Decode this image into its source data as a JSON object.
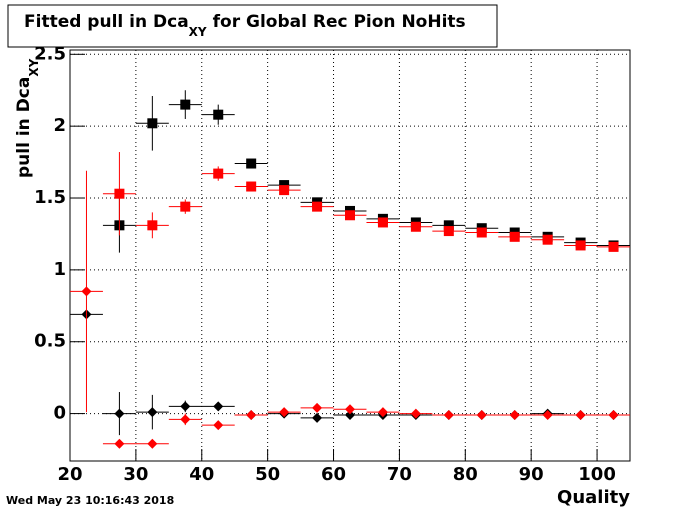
{
  "chart_data": {
    "type": "errorbar",
    "title": {
      "main": "Fitted pull in Dca",
      "subscript": "XY",
      "rest": "for Global Rec Pion NoHits"
    },
    "y_label": {
      "main": "pull in Dca",
      "subscript": "XY"
    },
    "x_label": "Quality",
    "timestamp": "Wed May 23 10:16:43 2018",
    "x": [
      22.5,
      27.5,
      32.5,
      37.5,
      42.5,
      47.5,
      52.5,
      57.5,
      62.5,
      67.5,
      72.5,
      77.5,
      82.5,
      87.5,
      92.5,
      97.5,
      102.5
    ],
    "xlim": [
      20,
      105
    ],
    "xticks": [
      20,
      30,
      40,
      50,
      60,
      70,
      80,
      90,
      100
    ],
    "ylim": [
      -0.33,
      2.53
    ],
    "yticks": [
      0,
      0.5,
      1,
      1.5,
      2,
      2.5
    ],
    "grid": true,
    "series": [
      {
        "color": "#000000",
        "marker": "square",
        "values": [
          null,
          1.31,
          2.02,
          2.15,
          2.08,
          1.74,
          1.59,
          1.47,
          1.41,
          1.355,
          1.33,
          1.31,
          1.29,
          1.26,
          1.23,
          1.19,
          1.17
        ],
        "errors": [
          null,
          0.19,
          0.19,
          0.1,
          0.07,
          0.02,
          0.02,
          0.02,
          0.01,
          0.01,
          0.01,
          0.01,
          0.01,
          0.01,
          0.01,
          0.01,
          0.01
        ]
      },
      {
        "color": "#ff0000",
        "marker": "square",
        "values": [
          null,
          1.53,
          1.31,
          1.44,
          1.67,
          1.58,
          1.555,
          1.44,
          1.38,
          1.33,
          1.3,
          1.27,
          1.26,
          1.23,
          1.21,
          1.17,
          1.16
        ],
        "errors": [
          null,
          0.29,
          0.09,
          0.05,
          0.05,
          0.02,
          0.02,
          0.02,
          0.01,
          0.01,
          0.01,
          0.01,
          0.01,
          0.01,
          0.01,
          0.01,
          0.01
        ]
      },
      {
        "color": "#000000",
        "marker": "diamond",
        "values": [
          0.69,
          0.0,
          0.01,
          0.05,
          0.05,
          -0.01,
          0.0,
          -0.03,
          -0.01,
          -0.01,
          -0.01,
          -0.01,
          -0.01,
          -0.01,
          0.0,
          -0.01,
          -0.01
        ],
        "errors": [
          0.02,
          0.15,
          0.12,
          0.04,
          0.03,
          0.01,
          0.01,
          0.01,
          0.01,
          0.01,
          0.01,
          0.01,
          0.01,
          0.01,
          0.01,
          0.01,
          0.01
        ]
      },
      {
        "color": "#ff0000",
        "marker": "diamond",
        "values": [
          0.85,
          -0.21,
          -0.21,
          -0.04,
          -0.08,
          -0.01,
          0.01,
          0.04,
          0.03,
          0.01,
          0.0,
          -0.01,
          -0.01,
          -0.01,
          -0.01,
          -0.01,
          -0.01
        ],
        "errors": [
          0.84,
          0.01,
          0.03,
          0.04,
          0.02,
          0.01,
          0.01,
          0.01,
          0.01,
          0.01,
          0.01,
          0.01,
          0.01,
          0.01,
          0.01,
          0.01,
          0.01
        ]
      }
    ]
  }
}
